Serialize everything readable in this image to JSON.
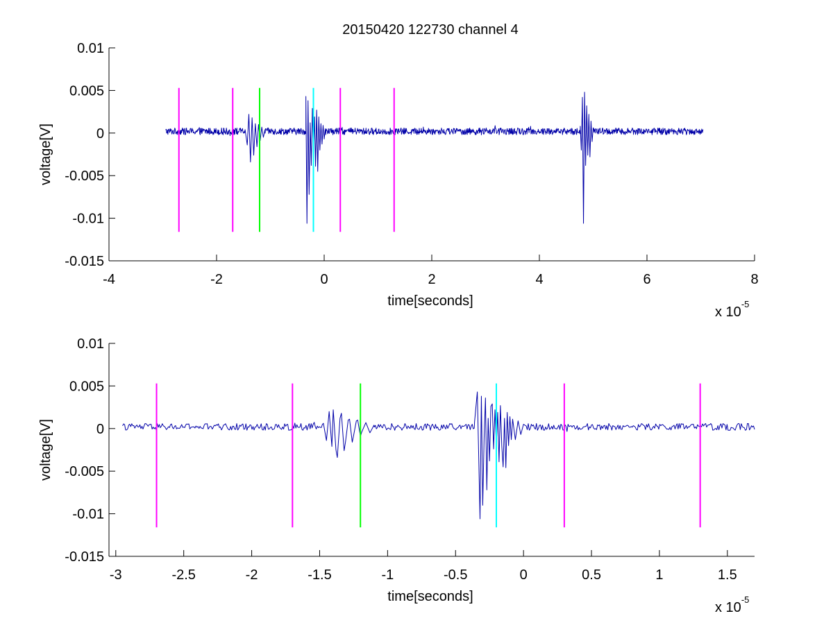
{
  "figure": {
    "title": "20150420 122730 channel 4",
    "exponent_prefix": "x 10",
    "exponent_power": "-5"
  },
  "chart_data": [
    {
      "type": "line",
      "title": "20150420 122730 channel 4",
      "xlabel": "time[seconds]",
      "ylabel": "voltage[V]",
      "x_scale_label": "x 10^-5",
      "xlim": [
        -4,
        8
      ],
      "ylim": [
        -0.015,
        0.01
      ],
      "xticks": [
        -4,
        -2,
        0,
        2,
        4,
        6,
        8
      ],
      "xtick_labels": [
        "-4",
        "-2",
        "0",
        "2",
        "4",
        "6",
        "8"
      ],
      "yticks": [
        0.01,
        0.005,
        0,
        -0.005,
        -0.01,
        -0.015
      ],
      "ytick_labels": [
        "0.01",
        "0.005",
        "0",
        "-0.005",
        "-0.01",
        "-0.015"
      ],
      "grid": false,
      "series": [
        {
          "color": "#0000a8",
          "x_range": [
            -2.95,
            7.05
          ],
          "baseline": 0.0002,
          "noise_amplitude": 0.0004,
          "bursts": [
            {
              "x": [
                -1.47,
                -1.43,
                -1.4,
                -1.37,
                -1.34,
                -1.31,
                -1.28,
                -1.25,
                -1.22,
                -1.19,
                -1.16,
                -1.13,
                -1.1
              ],
              "y": [
                0.0004,
                -0.0014,
                0.0022,
                -0.0034,
                0.0018,
                -0.0026,
                0.0011,
                -0.0016,
                0.001,
                -0.0009,
                0.0007,
                -0.0005,
                0.0004
              ]
            },
            {
              "x": [
                -0.34,
                -0.32,
                -0.3,
                -0.28,
                -0.26,
                -0.24,
                -0.22,
                -0.2,
                -0.18,
                -0.16,
                -0.14,
                -0.12,
                -0.1,
                -0.08,
                -0.06,
                -0.04,
                -0.02,
                0.0,
                0.02
              ],
              "y": [
                0.0043,
                -0.0106,
                0.0038,
                -0.0072,
                0.0012,
                -0.0038,
                0.0029,
                -0.0024,
                0.0019,
                -0.0039,
                0.0027,
                -0.0045,
                0.0019,
                -0.002,
                0.0011,
                -0.0013,
                0.0009,
                -0.0007,
                0.0005
              ]
            },
            {
              "x": [
                4.76,
                4.78,
                4.8,
                4.82,
                4.84,
                4.86,
                4.88,
                4.9,
                4.92,
                4.94,
                4.96,
                4.98,
                5.0
              ],
              "y": [
                0.0008,
                -0.002,
                0.0042,
                -0.0106,
                0.0048,
                -0.0038,
                0.0032,
                -0.0026,
                0.0022,
                -0.0028,
                0.0014,
                -0.001,
                0.0006
              ]
            }
          ]
        }
      ],
      "vlines": [
        {
          "x": -2.7,
          "color": "#ff00ff",
          "y_range": [
            -0.0116,
            0.0053
          ]
        },
        {
          "x": -1.7,
          "color": "#ff00ff",
          "y_range": [
            -0.0116,
            0.0053
          ]
        },
        {
          "x": -1.2,
          "color": "#00ff00",
          "y_range": [
            -0.0116,
            0.0053
          ]
        },
        {
          "x": -0.2,
          "color": "#00ffff",
          "y_range": [
            -0.0116,
            0.0053
          ]
        },
        {
          "x": 0.3,
          "color": "#ff00ff",
          "y_range": [
            -0.0116,
            0.0053
          ]
        },
        {
          "x": 1.3,
          "color": "#ff00ff",
          "y_range": [
            -0.0116,
            0.0053
          ]
        }
      ]
    },
    {
      "type": "line",
      "title": "",
      "xlabel": "time[seconds]",
      "ylabel": "voltage[V]",
      "x_scale_label": "x 10^-5",
      "xlim": [
        -3.05,
        1.7
      ],
      "ylim": [
        -0.015,
        0.01
      ],
      "xticks": [
        -3,
        -2.5,
        -2,
        -1.5,
        -1,
        -0.5,
        0,
        0.5,
        1,
        1.5
      ],
      "xtick_labels": [
        "-3",
        "-2.5",
        "-2",
        "-1.5",
        "-1",
        "-0.5",
        "0",
        "0.5",
        "1",
        "1.5"
      ],
      "yticks": [
        0.01,
        0.005,
        0,
        -0.005,
        -0.01,
        -0.015
      ],
      "ytick_labels": [
        "0.01",
        "0.005",
        "0",
        "-0.005",
        "-0.01",
        "-0.015"
      ],
      "grid": false,
      "series": [
        {
          "color": "#0000a8",
          "x_range": [
            -2.95,
            1.7
          ],
          "baseline": 0.0002,
          "noise_amplitude": 0.0004,
          "bursts": [
            {
              "x": [
                -1.47,
                -1.45,
                -1.43,
                -1.41,
                -1.4,
                -1.38,
                -1.37,
                -1.35,
                -1.34,
                -1.32,
                -1.31,
                -1.29,
                -1.28,
                -1.26,
                -1.25,
                -1.23,
                -1.22,
                -1.2,
                -1.19,
                -1.16,
                -1.13,
                -1.1
              ],
              "y": [
                0.0004,
                -0.0014,
                0.002,
                -0.0021,
                0.0022,
                -0.0025,
                -0.0034,
                0.0012,
                0.0018,
                -0.0026,
                -0.0016,
                0.001,
                0.0011,
                -0.0016,
                -0.0008,
                0.0009,
                0.001,
                -0.0009,
                -0.0004,
                0.0007,
                -0.0005,
                0.0004
              ]
            },
            {
              "x": [
                -0.36,
                -0.34,
                -0.33,
                -0.32,
                -0.31,
                -0.3,
                -0.29,
                -0.28,
                -0.27,
                -0.26,
                -0.25,
                -0.24,
                -0.23,
                -0.22,
                -0.21,
                -0.2,
                -0.19,
                -0.18,
                -0.17,
                -0.16,
                -0.15,
                -0.14,
                -0.13,
                -0.12,
                -0.11,
                -0.1,
                -0.09,
                -0.08,
                -0.06,
                -0.04,
                -0.02,
                0.0,
                0.02
              ],
              "y": [
                0.0008,
                0.0043,
                -0.003,
                -0.0106,
                0.0038,
                -0.009,
                -0.0012,
                0.0036,
                -0.0072,
                0.0012,
                -0.0038,
                0.0026,
                0.0029,
                -0.0024,
                0.0022,
                -0.002,
                0.0019,
                -0.0039,
                0.0027,
                -0.002,
                -0.0045,
                0.0012,
                -0.0046,
                0.0019,
                -0.002,
                0.0014,
                -0.0013,
                0.0011,
                -0.0013,
                0.0009,
                -0.0007,
                0.0005,
                0.0003
              ]
            }
          ]
        }
      ],
      "vlines": [
        {
          "x": -2.7,
          "color": "#ff00ff",
          "y_range": [
            -0.0116,
            0.0053
          ]
        },
        {
          "x": -1.7,
          "color": "#ff00ff",
          "y_range": [
            -0.0116,
            0.0053
          ]
        },
        {
          "x": -1.2,
          "color": "#00ff00",
          "y_range": [
            -0.0116,
            0.0053
          ]
        },
        {
          "x": -0.2,
          "color": "#00ffff",
          "y_range": [
            -0.0116,
            0.0053
          ]
        },
        {
          "x": 0.3,
          "color": "#ff00ff",
          "y_range": [
            -0.0116,
            0.0053
          ]
        },
        {
          "x": 1.3,
          "color": "#ff00ff",
          "y_range": [
            -0.0116,
            0.0053
          ]
        }
      ]
    }
  ]
}
